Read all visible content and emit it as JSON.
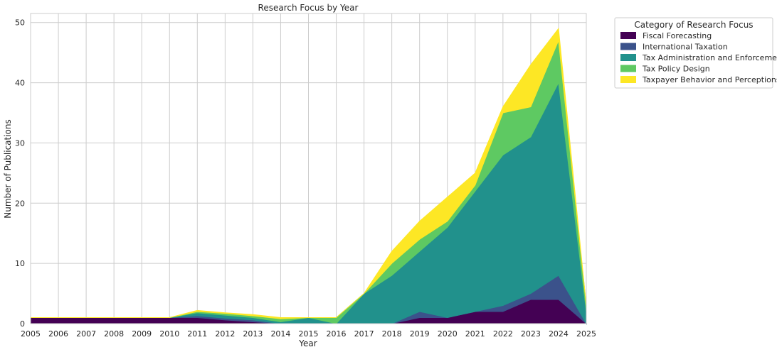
{
  "chart_data": {
    "type": "area",
    "stacked": true,
    "title": "Research Focus by Year",
    "xlabel": "Year",
    "ylabel": "Number of Publications",
    "x": [
      "2005",
      "2006",
      "2007",
      "2008",
      "2009",
      "2010",
      "2011",
      "2012",
      "2013",
      "2014",
      "2015",
      "2016",
      "2017",
      "2018",
      "2019",
      "2020",
      "2021",
      "2022",
      "2023",
      "2024",
      "2025"
    ],
    "ylim": [
      0,
      51.5
    ],
    "yticks": [
      0,
      10,
      20,
      30,
      40,
      50
    ],
    "grid": true,
    "legend": {
      "title": "Category of Research Focus",
      "placement": "outside-top-right"
    },
    "series": [
      {
        "name": "Fiscal Forecasting",
        "color": "#440154",
        "values": [
          1,
          1,
          1,
          1,
          1,
          1,
          1,
          0.6,
          0.3,
          0,
          0,
          0,
          0,
          0,
          1,
          1,
          2,
          2,
          4,
          4,
          0
        ]
      },
      {
        "name": "International Taxation",
        "color": "#3b528b",
        "values": [
          0,
          0,
          0,
          0,
          0,
          0,
          0.3,
          0.3,
          0.3,
          0,
          0,
          0,
          0,
          0,
          1,
          0,
          0,
          1,
          1,
          4,
          0
        ]
      },
      {
        "name": "Tax Administration and Enforcement",
        "color": "#21918c",
        "values": [
          0,
          0,
          0,
          0,
          0,
          0,
          0.5,
          0.5,
          0.4,
          0.3,
          1,
          0,
          5,
          8,
          10,
          15,
          20,
          25,
          26,
          32,
          2
        ]
      },
      {
        "name": "Tax Policy Design",
        "color": "#5ec962",
        "values": [
          0,
          0,
          0,
          0,
          0,
          0,
          0.2,
          0.3,
          0.3,
          0.5,
          0,
          1,
          0,
          2,
          2,
          1,
          1,
          7,
          5,
          7,
          1
        ]
      },
      {
        "name": "Taxpayer Behavior and Perceptions",
        "color": "#fde725",
        "values": [
          0,
          0,
          0,
          0,
          0,
          0,
          0.2,
          0.1,
          0.2,
          0.2,
          0,
          0,
          0,
          2,
          3,
          4,
          2,
          1,
          7,
          2,
          0
        ]
      }
    ]
  }
}
